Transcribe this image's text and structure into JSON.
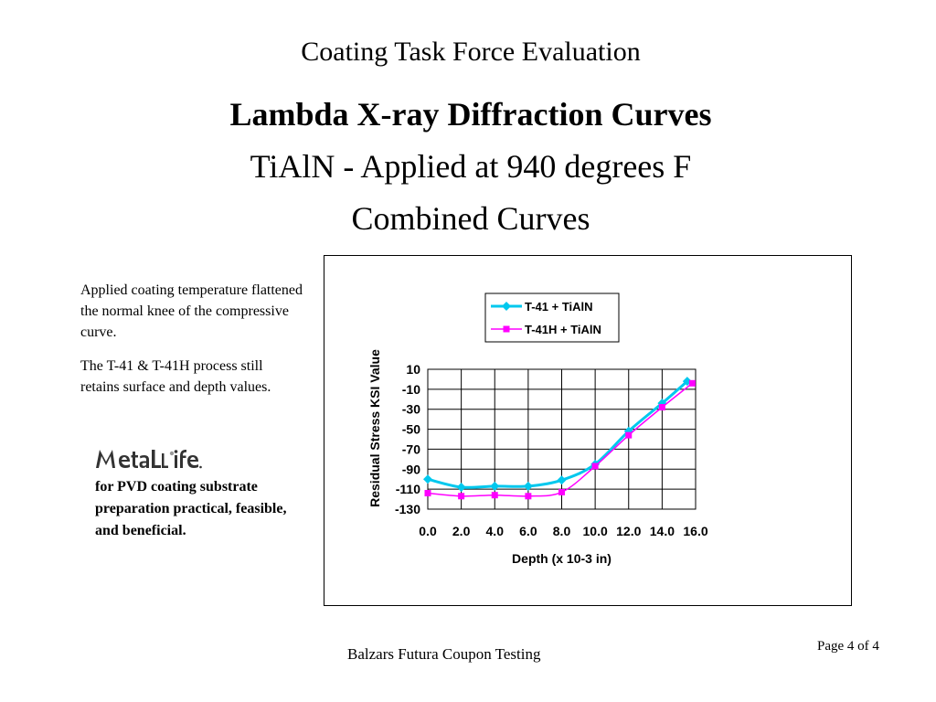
{
  "header": {
    "title": "Coating Task Force Evaluation",
    "subtitle": "Lambda X-ray Diffraction Curves",
    "line3": "TiAlN - Applied at 940 degrees F",
    "line4": "Combined Curves"
  },
  "notes": {
    "note1": "Applied coating temperature flattened the normal knee of the compressive curve.",
    "note2": "The T-41 & T-41H process still retains surface and depth values."
  },
  "logo": {
    "text": "MetaLLife"
  },
  "promo": {
    "text": "for PVD coating substrate preparation practical, feasible, and beneficial."
  },
  "footer": {
    "center": "Balzars Futura Coupon Testing",
    "page": "Page 4 of 4"
  },
  "chart_data": {
    "type": "line",
    "title": "",
    "xlabel": "Depth (x 10-3 in)",
    "ylabel": "Residual Stress KSI Value",
    "xlim": [
      0,
      16
    ],
    "ylim": [
      -130,
      10
    ],
    "x_ticks": [
      "0.0",
      "2.0",
      "4.0",
      "6.0",
      "8.0",
      "10.0",
      "12.0",
      "14.0",
      "16.0"
    ],
    "y_ticks": [
      "10",
      "-10",
      "-30",
      "-50",
      "-70",
      "-90",
      "-110",
      "-130"
    ],
    "legend_position": "top-right",
    "grid": true,
    "series": [
      {
        "name": "T-41 + TiAlN",
        "color": "#00c8ee",
        "marker": "diamond",
        "x": [
          0,
          2,
          4,
          6,
          8,
          10,
          12,
          14,
          15.5
        ],
        "y": [
          -100,
          -108,
          -107,
          -107,
          -101,
          -85,
          -52,
          -24,
          -2
        ]
      },
      {
        "name": "T-41H + TiAlN",
        "color": "#ff00ff",
        "marker": "square",
        "x": [
          0,
          2,
          4,
          6,
          8,
          10,
          12,
          14,
          15.8
        ],
        "y": [
          -114,
          -117,
          -116,
          -117,
          -113,
          -87,
          -56,
          -28,
          -4
        ]
      }
    ]
  }
}
